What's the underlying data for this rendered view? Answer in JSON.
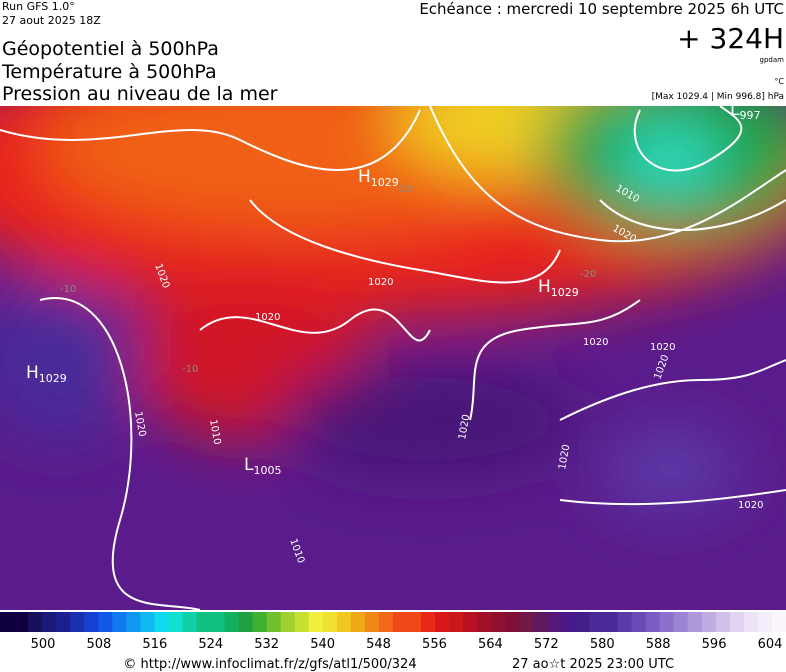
{
  "header": {
    "run": "Run GFS 1.0°",
    "date": "27 aout 2025 18Z",
    "titles": [
      "Géopotentiel à 500hPa",
      "Température à 500hPa",
      "Pression au niveau de la mer"
    ],
    "echeance": "Echéance : mercredi 10 septembre 2025 6h UTC",
    "lead": "+ 324H",
    "unit_geo": "gpdam",
    "unit_temp": "°C",
    "range": "[Max 1029.4 | Min 996.8] hPa"
  },
  "map": {
    "centers": [
      {
        "letter": "H",
        "value": "1029"
      },
      {
        "letter": "H",
        "value": "1029"
      },
      {
        "letter": "H",
        "value": "1029"
      },
      {
        "letter": "L",
        "value": "1005"
      },
      {
        "letter": "L",
        "value": "997"
      }
    ],
    "isobars": [
      "1020",
      "1020",
      "1020",
      "1010",
      "1020",
      "1020",
      "1020",
      "1020",
      "1020",
      "1010",
      "1010",
      "1020",
      "1020",
      "1020"
    ],
    "isotherms": [
      "-20",
      "-20",
      "-10",
      "-10"
    ]
  },
  "colorbar": {
    "ticks": [
      "500",
      "508",
      "516",
      "524",
      "532",
      "540",
      "548",
      "556",
      "564",
      "572",
      "580",
      "588",
      "596",
      "604"
    ]
  },
  "footer": {
    "url": "© http://www.infoclimat.fr/z/gfs/atl1/500/324",
    "time": "27 ao☆t 2025 23:00 UTC"
  }
}
